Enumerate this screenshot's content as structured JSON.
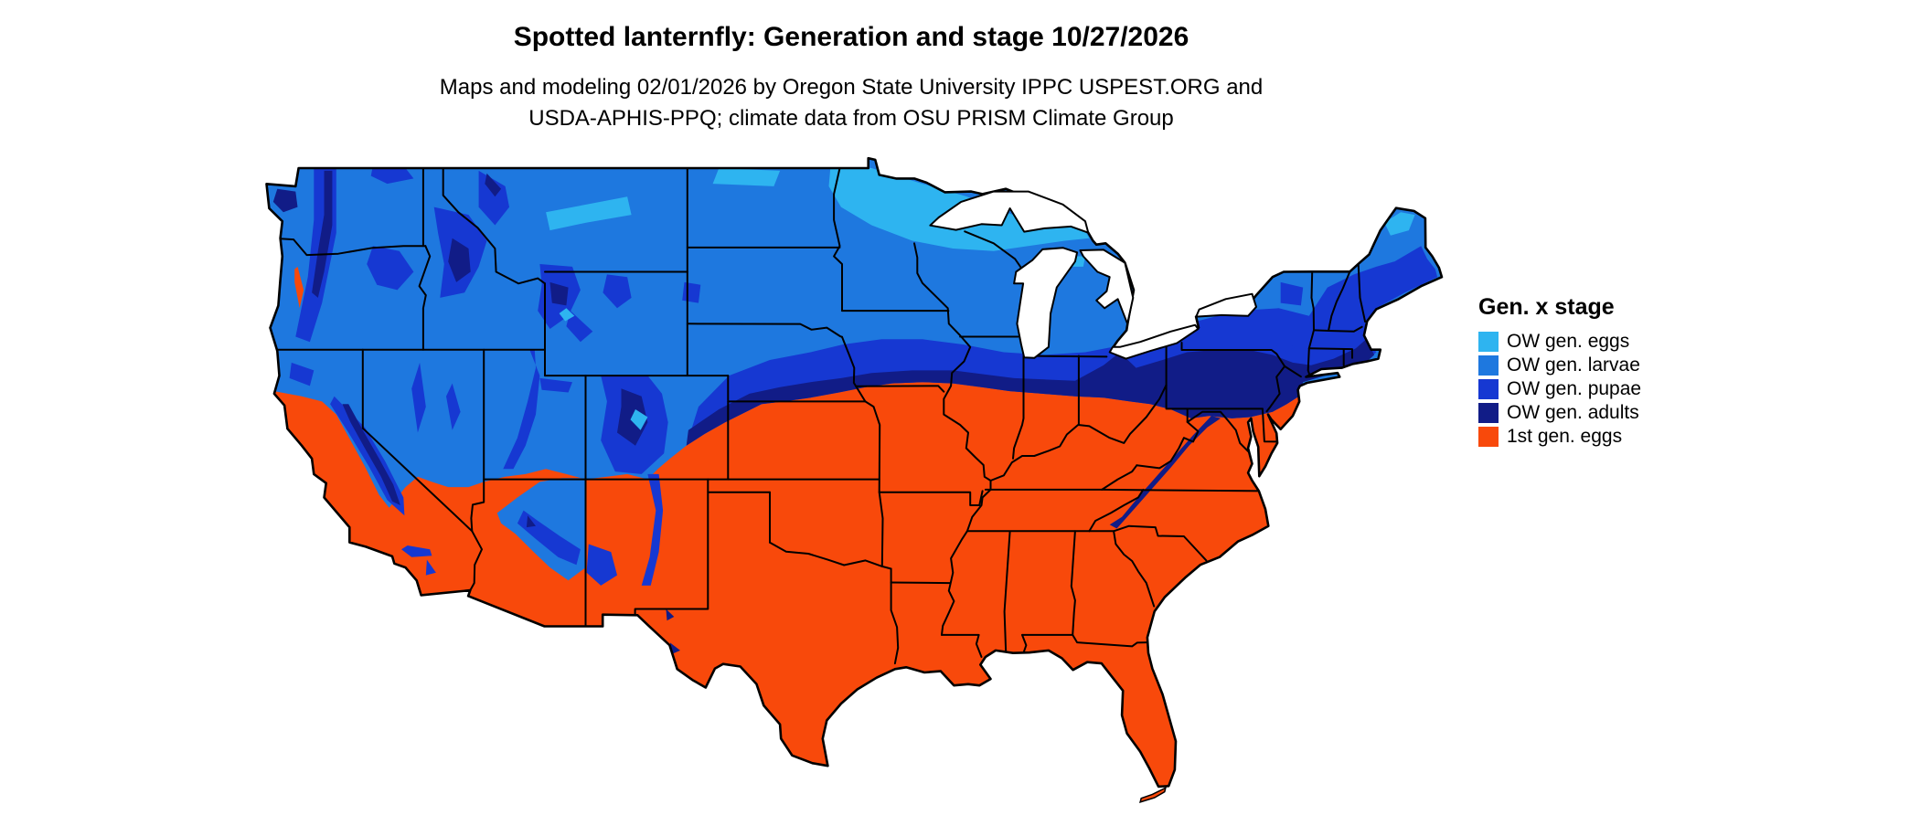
{
  "title": "Spotted lanternfly: Generation and stage 10/27/2026",
  "subtitle_line1": "Maps and modeling 02/01/2026 by Oregon State University IPPC USPEST.ORG and",
  "subtitle_line2": "USDA-APHIS-PPQ; climate data from OSU PRISM Climate Group",
  "legend": {
    "title": "Gen. x stage",
    "items": [
      {
        "label": "OW gen. eggs",
        "color": "#2EB4F0"
      },
      {
        "label": "OW gen. larvae",
        "color": "#1E78DF"
      },
      {
        "label": "OW gen. pupae",
        "color": "#1638D2"
      },
      {
        "label": "OW gen. adults",
        "color": "#111C87"
      },
      {
        "label": "1st gen. eggs",
        "color": "#F8490B"
      }
    ]
  },
  "map_colors": {
    "background": "#ffffff",
    "border": "#000000"
  }
}
